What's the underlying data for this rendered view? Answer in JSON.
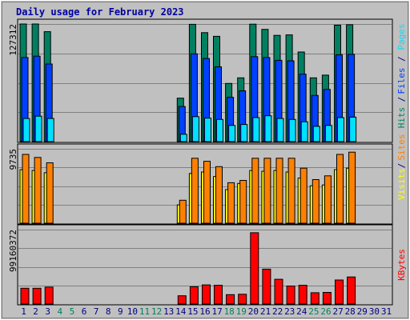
{
  "chart_data": {
    "type": "bar",
    "title": "Daily usage for February 2023",
    "categories": [
      "1",
      "2",
      "3",
      "4",
      "5",
      "6",
      "7",
      "8",
      "9",
      "10",
      "11",
      "12",
      "13",
      "14",
      "15",
      "16",
      "17",
      "18",
      "19",
      "20",
      "21",
      "22",
      "23",
      "24",
      "25",
      "26",
      "27",
      "28",
      "29",
      "30",
      "31"
    ],
    "weekend_days": [
      4,
      5,
      11,
      12,
      18,
      19,
      25,
      26
    ],
    "panels": [
      {
        "name": "hits-files-pages",
        "max_label": "127312",
        "ymax": 127312,
        "side_labels": [
          "Pages",
          "Files",
          "Hits"
        ],
        "series": [
          {
            "name": "Hits",
            "color": "#008060",
            "values": [
              127300,
              127300,
              119000,
              0,
              0,
              0,
              0,
              0,
              0,
              0,
              0,
              0,
              0,
              47000,
              127000,
              118000,
              114000,
              63000,
              69000,
              127100,
              121500,
              115000,
              115500,
              97000,
              69000,
              72000,
              126000,
              126500,
              0,
              0,
              0
            ]
          },
          {
            "name": "Files",
            "color": "#0040ff",
            "values": [
              91000,
              92500,
              84000,
              0,
              0,
              0,
              0,
              0,
              0,
              0,
              0,
              0,
              0,
              38000,
              95000,
              90000,
              81000,
              48000,
              55000,
              92000,
              91000,
              88000,
              87500,
              73000,
              50000,
              56500,
              94000,
              94500,
              0,
              0,
              0
            ]
          },
          {
            "name": "Pages",
            "color": "#00e0ff",
            "values": [
              25000,
              27500,
              25000,
              0,
              0,
              0,
              0,
              0,
              0,
              0,
              0,
              0,
              0,
              8000,
              27000,
              25500,
              24000,
              17500,
              18500,
              26000,
              28000,
              25000,
              24000,
              21500,
              16500,
              17500,
              26000,
              26500,
              0,
              0,
              0
            ]
          }
        ]
      },
      {
        "name": "visits-sites",
        "max_label": "9735",
        "ymax": 9735,
        "side_labels": [
          "Sites",
          "Visits"
        ],
        "series": [
          {
            "name": "Visits",
            "color": "#ffff00",
            "values": [
              7000,
              6900,
              6600,
              0,
              0,
              0,
              0,
              0,
              0,
              0,
              0,
              0,
              0,
              2400,
              6500,
              6700,
              6100,
              4400,
              5200,
              6900,
              6800,
              6900,
              6700,
              5900,
              4900,
              5000,
              7000,
              7200,
              0,
              0,
              0
            ]
          },
          {
            "name": "Sites",
            "color": "#ff8000",
            "values": [
              9000,
              8600,
              7900,
              0,
              0,
              0,
              0,
              0,
              0,
              0,
              0,
              0,
              0,
              3000,
              8500,
              8100,
              7400,
              5300,
              5600,
              8500,
              8500,
              8500,
              8500,
              7200,
              5700,
              6200,
              9000,
              9300,
              0,
              0,
              0
            ]
          }
        ]
      },
      {
        "name": "kbytes",
        "max_label": "99160372",
        "ymax": 99160372,
        "side_labels": [
          "KBytes"
        ],
        "series": [
          {
            "name": "KBytes",
            "color": "#ff0000",
            "values": [
              21000000,
              21000000,
              22500000,
              0,
              0,
              0,
              0,
              0,
              0,
              0,
              0,
              0,
              0,
              11000000,
              23000000,
              25500000,
              25000000,
              12500000,
              13000000,
              95000000,
              46500000,
              33000000,
              24000000,
              25000000,
              15000000,
              15500000,
              32000000,
              36000000,
              0,
              0,
              0
            ]
          }
        ]
      }
    ],
    "colors": {
      "background": "#c0c0c0",
      "frame": "#000000",
      "day_label": "#000080",
      "weekend_label": "#00805c",
      "gridline": "#808080"
    }
  }
}
